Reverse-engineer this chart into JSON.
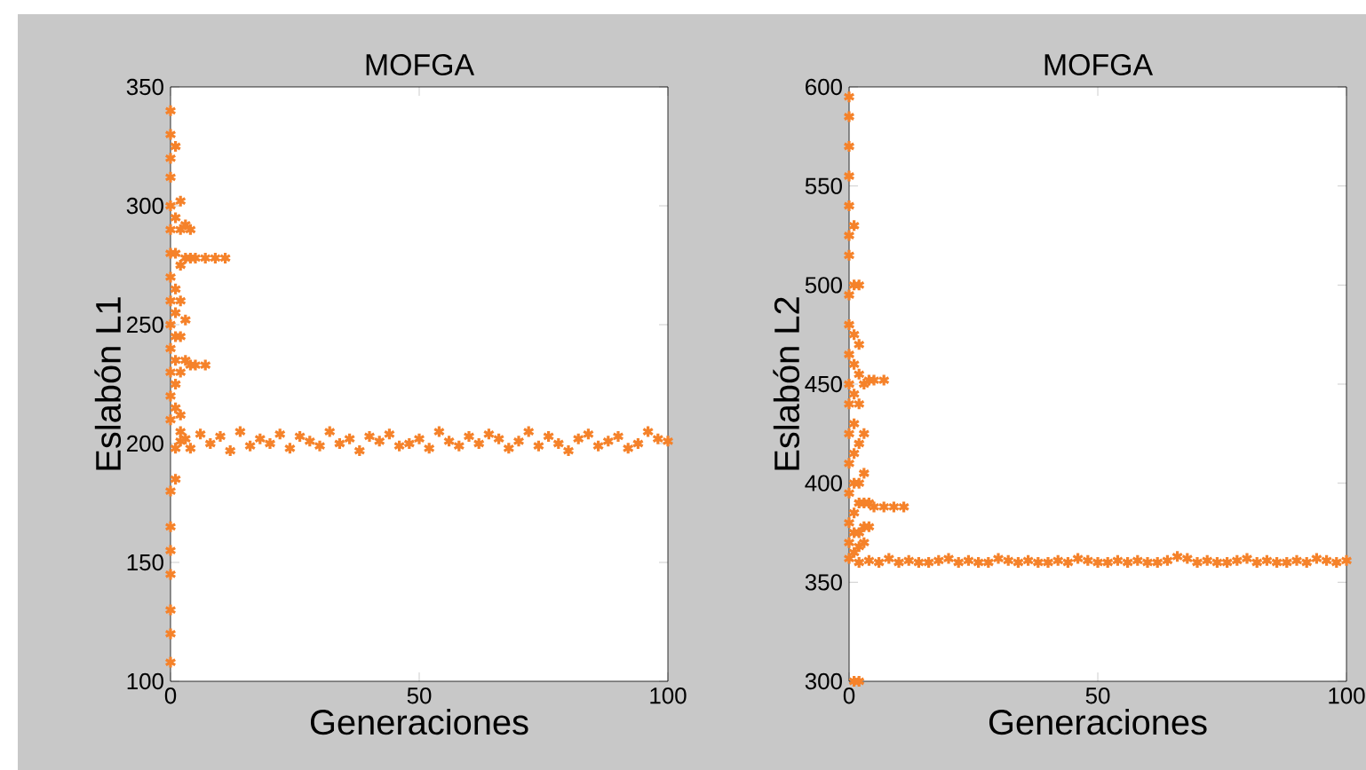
{
  "chart_data": [
    {
      "type": "scatter",
      "title": "MOFGA",
      "xlabel": "Generaciones",
      "ylabel": "Eslabón L1",
      "color": "#f5822a",
      "marker": "cross",
      "xlim": [
        0,
        100
      ],
      "ylim": [
        100,
        350
      ],
      "xticks": [
        0,
        50,
        100
      ],
      "yticks": [
        100,
        150,
        200,
        250,
        300,
        350
      ],
      "x": [
        0,
        0,
        0,
        0,
        0,
        0,
        0,
        0,
        0,
        0,
        0,
        0,
        0,
        0,
        0,
        0,
        0,
        0,
        0,
        0,
        0,
        1,
        1,
        1,
        1,
        1,
        1,
        1,
        1,
        1,
        1,
        1,
        2,
        2,
        2,
        2,
        2,
        2,
        2,
        2,
        3,
        3,
        3,
        3,
        3,
        4,
        4,
        4,
        5,
        5,
        7,
        7,
        9,
        11,
        2,
        4,
        6,
        8,
        10,
        12,
        14,
        16,
        18,
        20,
        22,
        24,
        26,
        28,
        30,
        32,
        34,
        36,
        38,
        40,
        42,
        44,
        46,
        48,
        50,
        52,
        54,
        56,
        58,
        60,
        62,
        64,
        66,
        68,
        70,
        72,
        74,
        76,
        78,
        80,
        82,
        84,
        86,
        88,
        90,
        92,
        94,
        96,
        98,
        100
      ],
      "values": [
        340,
        330,
        320,
        312,
        300,
        290,
        280,
        270,
        260,
        250,
        240,
        230,
        220,
        210,
        180,
        165,
        155,
        145,
        130,
        120,
        108,
        325,
        295,
        280,
        265,
        255,
        245,
        235,
        225,
        215,
        198,
        185,
        302,
        290,
        275,
        260,
        245,
        230,
        212,
        205,
        292,
        278,
        252,
        235,
        202,
        290,
        278,
        233,
        278,
        233,
        278,
        233,
        278,
        278,
        201,
        198,
        204,
        200,
        203,
        197,
        205,
        199,
        202,
        200,
        204,
        198,
        203,
        201,
        199,
        205,
        200,
        202,
        197,
        203,
        201,
        204,
        199,
        200,
        202,
        198,
        205,
        201,
        199,
        203,
        200,
        204,
        202,
        198,
        201,
        205,
        199,
        203,
        200,
        197,
        202,
        204,
        199,
        201,
        203,
        198,
        200,
        205,
        202,
        201
      ]
    },
    {
      "type": "scatter",
      "title": "MOFGA",
      "xlabel": "Generaciones",
      "ylabel": "Eslabón L2",
      "color": "#f5822a",
      "marker": "cross",
      "xlim": [
        0,
        100
      ],
      "ylim": [
        300,
        600
      ],
      "xticks": [
        0,
        50,
        100
      ],
      "yticks": [
        300,
        350,
        400,
        450,
        500,
        550,
        600
      ],
      "x": [
        0,
        0,
        0,
        0,
        0,
        0,
        0,
        0,
        0,
        0,
        0,
        0,
        0,
        0,
        0,
        0,
        0,
        0,
        1,
        1,
        1,
        1,
        1,
        1,
        1,
        1,
        1,
        1,
        1,
        1,
        2,
        2,
        2,
        2,
        2,
        2,
        2,
        2,
        2,
        2,
        3,
        3,
        3,
        3,
        3,
        3,
        4,
        4,
        4,
        5,
        5,
        7,
        7,
        9,
        11,
        2,
        4,
        6,
        8,
        10,
        12,
        14,
        16,
        18,
        20,
        22,
        24,
        26,
        28,
        30,
        32,
        34,
        36,
        38,
        40,
        42,
        44,
        46,
        48,
        50,
        52,
        54,
        56,
        58,
        60,
        62,
        64,
        66,
        68,
        70,
        72,
        74,
        76,
        78,
        80,
        82,
        84,
        86,
        88,
        90,
        92,
        94,
        96,
        98,
        100
      ],
      "values": [
        595,
        585,
        570,
        555,
        540,
        525,
        515,
        495,
        480,
        465,
        450,
        440,
        425,
        410,
        395,
        380,
        370,
        362,
        530,
        500,
        475,
        460,
        445,
        430,
        415,
        400,
        385,
        375,
        365,
        300,
        500,
        470,
        455,
        440,
        420,
        400,
        390,
        375,
        368,
        300,
        450,
        425,
        405,
        390,
        378,
        370,
        452,
        390,
        378,
        452,
        388,
        388,
        452,
        388,
        388,
        360,
        361,
        360,
        362,
        360,
        361,
        360,
        360,
        361,
        362,
        360,
        361,
        360,
        360,
        362,
        361,
        360,
        361,
        360,
        360,
        361,
        360,
        362,
        361,
        360,
        360,
        361,
        360,
        361,
        360,
        360,
        361,
        363,
        362,
        360,
        361,
        360,
        360,
        361,
        362,
        360,
        361,
        360,
        360,
        361,
        360,
        362,
        361,
        360,
        361
      ]
    }
  ]
}
